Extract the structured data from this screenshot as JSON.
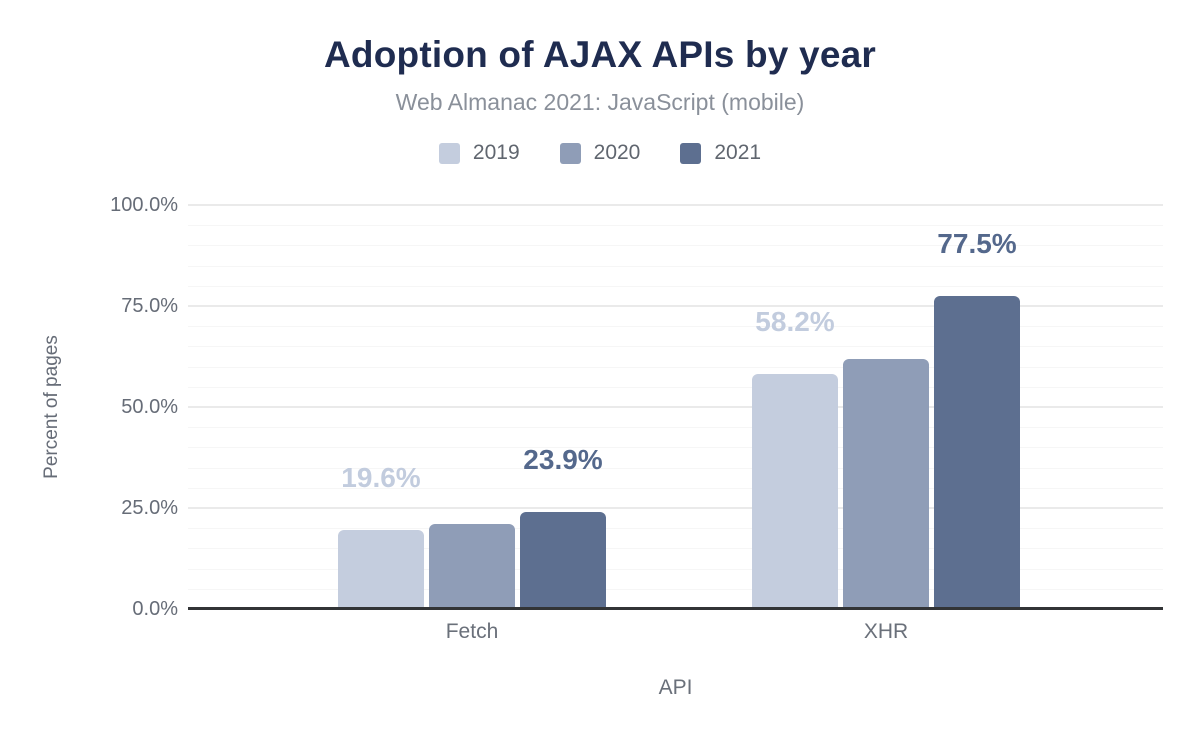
{
  "chart_data": {
    "type": "bar",
    "title": "Adoption of AJAX APIs by year",
    "subtitle": "Web Almanac 2021: JavaScript (mobile)",
    "xlabel": "API",
    "ylabel": "Percent of pages",
    "categories": [
      "Fetch",
      "XHR"
    ],
    "series": [
      {
        "name": "2019",
        "color": "#c4cdde",
        "values": [
          19.6,
          58.2
        ],
        "data_labels": [
          "19.6%",
          "58.2%"
        ],
        "label_color": "#c2ccde"
      },
      {
        "name": "2020",
        "color": "#8f9db7",
        "values": [
          21.0,
          61.8
        ],
        "data_labels": [
          null,
          null
        ],
        "label_color": null
      },
      {
        "name": "2021",
        "color": "#5d6f90",
        "values": [
          23.9,
          77.5
        ],
        "data_labels": [
          "23.9%",
          "77.5%"
        ],
        "label_color": "#54688c"
      }
    ],
    "ylim": [
      0,
      100
    ],
    "yticks": [
      {
        "value": 0,
        "label": "0.0%"
      },
      {
        "value": 25,
        "label": "25.0%"
      },
      {
        "value": 50,
        "label": "50.0%"
      },
      {
        "value": 75,
        "label": "75.0%"
      },
      {
        "value": 100,
        "label": "100.0%"
      }
    ],
    "grid": {
      "minor_step_percent": 5,
      "major_step_percent": 25,
      "orientation": "horizontal"
    },
    "legend_position": "top",
    "legend": [
      "2019",
      "2020",
      "2021"
    ]
  },
  "colors": {
    "title": "#1f2c50",
    "subtitle": "#8a909a",
    "axis_text": "#666c77",
    "axis_line": "#323436",
    "grid_major": "#eaeaea",
    "grid_minor": "#f6f6f6",
    "background": "#ffffff"
  }
}
